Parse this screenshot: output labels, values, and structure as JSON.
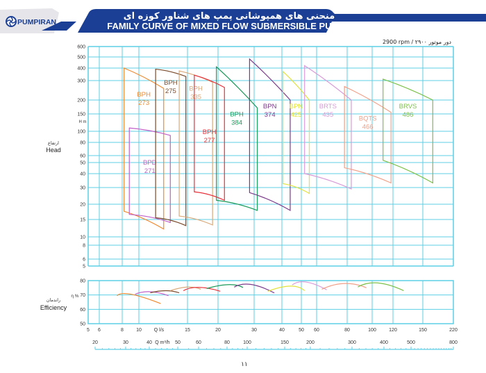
{
  "header": {
    "logo_text": "PUMPIRAN",
    "title_fa": "منحنی های همپوشانی پمپ های شناور کوزه ای",
    "title_en": "FAMILY CURVE OF MIXED FLOW SUBMERSIBLE PUMPS",
    "speed": "2900 rpm / ۲۹۰۰ دور موتور",
    "banner_color": "#1b3f94"
  },
  "page_number": "۱۱",
  "chart_data": [
    {
      "type": "line",
      "title": "FAMILY CURVE OF MIXED FLOW SUBMERSIBLE PUMPS",
      "ylabel": "Head",
      "ylabel_fa": "ارتفاع",
      "yunit": "H m",
      "yscale": "log",
      "ylim": [
        5,
        600
      ],
      "yticks": [
        "600",
        "500",
        "400",
        "300",
        "200",
        "150",
        "100",
        "80",
        "60",
        "50",
        "40",
        "30",
        "20",
        "15",
        "10",
        "8",
        "6",
        "5"
      ],
      "xscale": "log",
      "xlim": [
        5,
        220
      ],
      "grid": true,
      "grid_color": "#5ccfe6",
      "series": [
        {
          "name": "BPH 273",
          "label": [
            "BPH",
            "273"
          ],
          "color": "#f08a30",
          "q": [
            8.2,
            12.3
          ],
          "h_top": [
            400,
            255
          ],
          "h_bottom": [
            17.5,
            12
          ]
        },
        {
          "name": "BPD 271",
          "label": [
            "BPD",
            "271"
          ],
          "color": "#c060c8",
          "q": [
            8.8,
            13
          ],
          "h_top": [
            108,
            92
          ],
          "h_bottom": [
            16.5,
            14
          ]
        },
        {
          "name": "BPH 275",
          "label": [
            "BPH",
            "275"
          ],
          "color": "#7a4a2a",
          "q": [
            11.5,
            14.8
          ],
          "h_top": [
            390,
            330
          ],
          "h_bottom": [
            15.5,
            13
          ]
        },
        {
          "name": "BPH 335",
          "label": [
            "BPH",
            "335"
          ],
          "color": "#d9a97a",
          "q": [
            14,
            19
          ],
          "h_top": [
            375,
            290
          ],
          "h_bottom": [
            16,
            13.2
          ]
        },
        {
          "name": "BPH 277",
          "label": [
            "BPH",
            "277"
          ],
          "color": "#e8303a",
          "q": [
            16,
            21.5
          ],
          "h_top": [
            340,
            260
          ],
          "h_bottom": [
            27,
            22
          ]
        },
        {
          "name": "BPH 384",
          "label": [
            "BPH",
            "384"
          ],
          "color": "#1a9a5a",
          "q": [
            19.7,
            31
          ],
          "h_top": [
            410,
            170
          ],
          "h_bottom": [
            22,
            17.8
          ]
        },
        {
          "name": "BPN 374",
          "label": [
            "BPN",
            "374"
          ],
          "color": "#7a3a8a",
          "q": [
            28.5,
            44
          ],
          "h_top": [
            480,
            200
          ],
          "h_bottom": [
            26.5,
            17.8
          ]
        },
        {
          "name": "BPN 425",
          "label": [
            "BPN",
            "425"
          ],
          "color": "#e2e23a",
          "q": [
            40.5,
            55
          ],
          "h_top": [
            370,
            200
          ],
          "h_bottom": [
            32.5,
            26
          ]
        },
        {
          "name": "BRTS 435",
          "label": [
            "BRTS",
            "435"
          ],
          "color": "#d79ad7",
          "q": [
            52,
            83
          ],
          "h_top": [
            420,
            200
          ],
          "h_bottom": [
            40,
            29
          ]
        },
        {
          "name": "BQTS 466",
          "label": [
            "BQTS",
            "466"
          ],
          "color": "#f2a088",
          "q": [
            78,
            118
          ],
          "h_top": [
            265,
            155
          ],
          "h_bottom": [
            45,
            33
          ]
        },
        {
          "name": "BRVS 486",
          "label": [
            "BRVS",
            "486"
          ],
          "color": "#7cc04a",
          "q": [
            110,
            170
          ],
          "h_top": [
            310,
            200
          ],
          "h_bottom": [
            53,
            33
          ]
        }
      ]
    },
    {
      "type": "line",
      "ylabel": "Efficiency",
      "ylabel_fa": "راندمان",
      "yunit": "η %",
      "ylim": [
        50,
        80
      ],
      "yticks": [
        "80",
        "70",
        "60",
        "50"
      ],
      "xlabel": "Q l/s",
      "xticks": [
        "5",
        "6",
        "8",
        "10",
        "15",
        "20",
        "30",
        "40",
        "50",
        "60",
        "80",
        "100",
        "120",
        "150",
        "220"
      ],
      "xlabel2": "Q m³/h",
      "xticks2": [
        "20",
        "30",
        "40",
        "50",
        "60",
        "80",
        "100",
        "150",
        "200",
        "300",
        "400",
        "500",
        "800"
      ],
      "grid": true,
      "series": [
        {
          "name": "BPH 273",
          "color": "#f08a30",
          "q": [
            7.5,
            9,
            12
          ],
          "eta": [
            69.5,
            70.5,
            64
          ]
        },
        {
          "name": "BPD 271",
          "color": "#c060c8",
          "q": [
            9.5,
            11,
            12.8
          ],
          "eta": [
            70.5,
            72.3,
            69.5
          ]
        },
        {
          "name": "BPH 275",
          "color": "#7a4a2a",
          "q": [
            11,
            12.5,
            14
          ],
          "eta": [
            71.5,
            73,
            71.5
          ]
        },
        {
          "name": "BPH 335",
          "color": "#d9a97a",
          "q": [
            13,
            15,
            17
          ],
          "eta": [
            73,
            75.5,
            74
          ]
        },
        {
          "name": "BPH 277",
          "color": "#e8303a",
          "q": [
            14.5,
            16.7,
            20.5
          ],
          "eta": [
            73,
            75.3,
            72.6
          ]
        },
        {
          "name": "BPH 384",
          "color": "#1a9a5a",
          "q": [
            18,
            22.5,
            26.5
          ],
          "eta": [
            74.5,
            77.2,
            75.2
          ]
        },
        {
          "name": "BPN 374",
          "color": "#7a3a8a",
          "q": [
            24,
            29,
            37
          ],
          "eta": [
            75.5,
            77.3,
            71.4
          ]
        },
        {
          "name": "BPN 425",
          "color": "#e2e23a",
          "q": [
            34.5,
            44,
            52
          ],
          "eta": [
            72.5,
            76.2,
            73
          ]
        },
        {
          "name": "BRTS 435",
          "color": "#d79ad7",
          "q": [
            45,
            53,
            66
          ],
          "eta": [
            77,
            79,
            73.6
          ]
        },
        {
          "name": "BQTS 466",
          "color": "#f2a088",
          "q": [
            63,
            78,
            95
          ],
          "eta": [
            74,
            78,
            75
          ]
        },
        {
          "name": "BRVS 486",
          "color": "#7cc04a",
          "q": [
            88,
            105,
            130
          ],
          "eta": [
            75.6,
            78.4,
            73
          ]
        }
      ]
    }
  ]
}
